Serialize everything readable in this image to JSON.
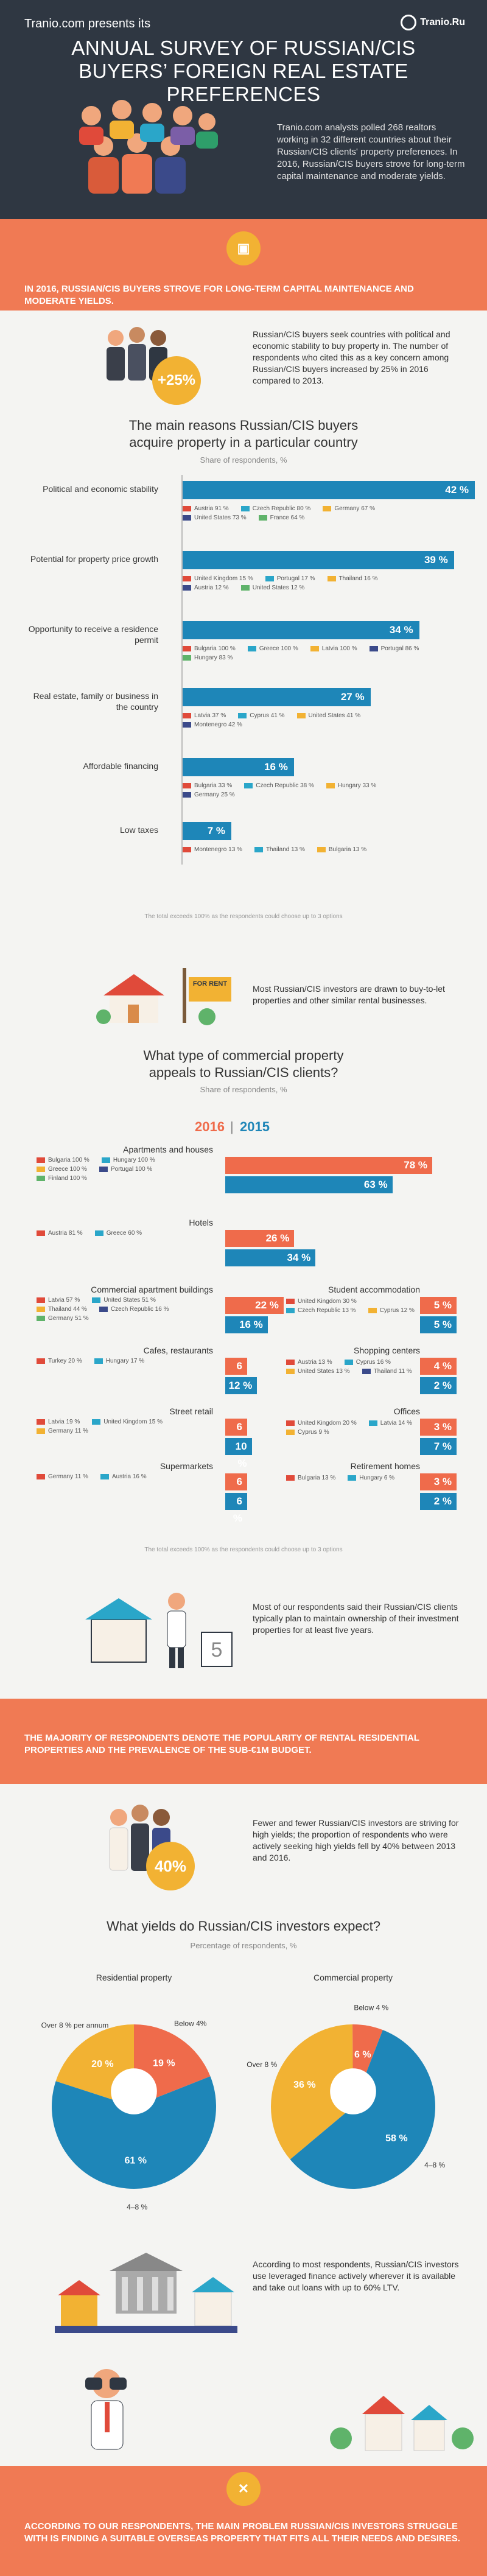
{
  "header": {
    "presents": "Tranio.com presents its",
    "logo": "Tranio.Ru",
    "title": "ANNUAL SURVEY OF RUSSIAN/CIS BUYERS’ FOREIGN REAL ESTATE PREFERENCES",
    "intro": "Tranio.com analysts polled 268 realtors working in 32 different countries about their Russian/CIS clients' property preferences. In 2016, Russian/CIS buyers strove for long-term capital maintenance and moderate yields."
  },
  "band1": {
    "text": "IN 2016, RUSSIAN/CIS BUYERS STROVE FOR LONG-TERM CAPITAL MAINTENANCE AND MODERATE YIELDS."
  },
  "stability": {
    "badge": "+25%",
    "text": "Russian/CIS buyers seek countries with political and economic stability to buy property in. The number of respondents who cited this as a key concern among Russian/CIS buyers increased by 25% in 2016 compared to 2013."
  },
  "reasons": {
    "title": "The main reasons Russian/CIS buyers acquire property in a particular country",
    "subtitle": "Share of respondents, %",
    "note": "The total exceeds 100% as the respondents could choose up to 3 options",
    "items": [
      {
        "label": "Political and economic stability",
        "value": "42 %",
        "pct": 42,
        "countries": [
          "Austria 91 %",
          "Czech Republic 80 %",
          "Germany 67 %",
          "United States 73 %",
          "France 64 %"
        ]
      },
      {
        "label": "Potential for property price growth",
        "value": "39 %",
        "pct": 39,
        "countries": [
          "United Kingdom 15 %",
          "Portugal 17 %",
          "Thailand 16 %",
          "Austria 12 %",
          "United States 12 %"
        ]
      },
      {
        "label": "Opportunity to receive a residence permit",
        "value": "34 %",
        "pct": 34,
        "countries": [
          "Bulgaria 100 %",
          "Greece 100 %",
          "Latvia 100 %",
          "Portugal 86 %",
          "Hungary 83 %"
        ]
      },
      {
        "label": "Real estate, family or business in the country",
        "value": "27 %",
        "pct": 27,
        "countries": [
          "Latvia 37 %",
          "Cyprus 41 %",
          "United States 41 %",
          "Montenegro 42 %"
        ]
      },
      {
        "label": "Affordable financing",
        "value": "16 %",
        "pct": 16,
        "countries": [
          "Bulgaria 33 %",
          "Czech Republic 38 %",
          "Hungary 33 %",
          "Germany 25 %"
        ]
      },
      {
        "label": "Low taxes",
        "value": "7 %",
        "pct": 7,
        "countries": [
          "Montenegro 13 %",
          "Thailand 13 %",
          "Bulgaria 13 %"
        ]
      }
    ]
  },
  "rent": {
    "sign": "FOR RENT",
    "text": "Most Russian/CIS investors are drawn to buy-to-let properties and other similar rental businesses."
  },
  "commercial": {
    "title": "What type of commercial property appeals to Russian/CIS clients?",
    "subtitle": "Share of respondents, %",
    "year1": "2016",
    "sep": "|",
    "year2": "2015",
    "note": "The total exceeds 100% as the respondents could choose up to 3 options",
    "left": [
      {
        "label": "Apartments and houses",
        "v1": "78 %",
        "p1": 78,
        "v2": "63 %",
        "p2": 63,
        "countries": [
          "Bulgaria 100 %",
          "Hungary 100 %",
          "Greece 100 %",
          "Portugal 100 %",
          "Finland 100 %"
        ]
      },
      {
        "label": "Hotels",
        "v1": "26 %",
        "p1": 26,
        "v2": "34 %",
        "p2": 34,
        "countries": [
          "Austria 81 %",
          "Greece 60 %"
        ]
      },
      {
        "label": "Commercial apartment buildings",
        "v1": "22 %",
        "p1": 22,
        "v2": "16 %",
        "p2": 16,
        "countries": [
          "Latvia 57 %",
          "United States 51 %",
          "Thailand 44 %",
          "Czech Republic 16 %",
          "Germany 51 %"
        ]
      },
      {
        "label": "Cafes, restaurants",
        "v1": "6 %",
        "p1": 6,
        "v2": "12 %",
        "p2": 12,
        "countries": [
          "Turkey 20 %",
          "Hungary 17 %"
        ]
      },
      {
        "label": "Street retail",
        "v1": "6 %",
        "p1": 6,
        "v2": "10 %",
        "p2": 10,
        "countries": [
          "Latvia 19 %",
          "United Kingdom 15 %",
          "Germany 11 %"
        ]
      },
      {
        "label": "Supermarkets",
        "v1": "6 %",
        "p1": 6,
        "v2": "6 %",
        "p2": 6,
        "countries": [
          "Germany 11 %",
          "Austria 16 %"
        ]
      }
    ],
    "right": [
      {
        "label": "Student accommodation",
        "v1": "5 %",
        "p1": 5,
        "v2": "5 %",
        "p2": 5,
        "countries": [
          "United Kingdom 30 %",
          "Czech Republic 13 %",
          "Cyprus 12 %"
        ]
      },
      {
        "label": "Shopping centers",
        "v1": "4 %",
        "p1": 4,
        "v2": "2 %",
        "p2": 2,
        "countries": [
          "Austria 13 %",
          "Cyprus 16 %",
          "United States 13 %",
          "Thailand 11 %"
        ]
      },
      {
        "label": "Offices",
        "v1": "3 %",
        "p1": 3,
        "v2": "7 %",
        "p2": 7,
        "countries": [
          "United Kingdom 20 %",
          "Latvia 14 %",
          "Cyprus 9 %"
        ]
      },
      {
        "label": "Retirement homes",
        "v1": "3 %",
        "p1": 3,
        "v2": "2 %",
        "p2": 2,
        "countries": [
          "Bulgaria 13 %",
          "Hungary 6 %"
        ]
      }
    ]
  },
  "ownership": {
    "calendar": "5",
    "text": "Most of our respondents said their Russian/CIS clients typically plan to maintain ownership of their investment properties for at least five years."
  },
  "band2": {
    "text": "THE MAJORITY OF RESPONDENTS DENOTE THE POPULARITY OF RENTAL RESIDENTIAL PROPERTIES AND THE PREVALENCE OF THE SUB-€1M BUDGET."
  },
  "yields_badge": {
    "badge": "40%",
    "text": "Fewer and fewer Russian/CIS investors are striving for high yields; the proportion of respondents who were actively seeking high yields fell by 40% between 2013 and 2016."
  },
  "yields": {
    "title": "What yields do Russian/CIS investors expect?",
    "subtitle": "Percentage of respondents, %",
    "residential": {
      "title": "Residential property",
      "slices": [
        {
          "label": "Over 8 % per annum",
          "value": "20 %",
          "pct": 20,
          "color": "#f2b233"
        },
        {
          "label": "Below 4%",
          "value": "19 %",
          "pct": 19,
          "color": "#ef6b4b"
        },
        {
          "label": "4–8 %",
          "value": "61 %",
          "pct": 61,
          "color": "#1e86b8"
        }
      ]
    },
    "commercial": {
      "title": "Commercial property",
      "slices": [
        {
          "label": "Over 8 %",
          "value": "36 %",
          "pct": 36,
          "color": "#f2b233"
        },
        {
          "label": "Below 4 %",
          "value": "6 %",
          "pct": 6,
          "color": "#ef6b4b"
        },
        {
          "label": "4–8 %",
          "value": "58 %",
          "pct": 58,
          "color": "#1e86b8"
        }
      ]
    }
  },
  "finance": {
    "text": "According to most respondents, Russian/CIS investors use leveraged finance actively wherever it is available and take out loans with up to 60% LTV."
  },
  "bottom": {
    "text": "ACCORDING TO OUR RESPONDENTS, THE MAIN PROBLEM RUSSIAN/CIS INVESTORS STRUGGLE WITH IS FINDING A SUITABLE OVERSEAS PROPERTY THAT FITS ALL THEIR NEEDS AND DESIRES."
  }
}
